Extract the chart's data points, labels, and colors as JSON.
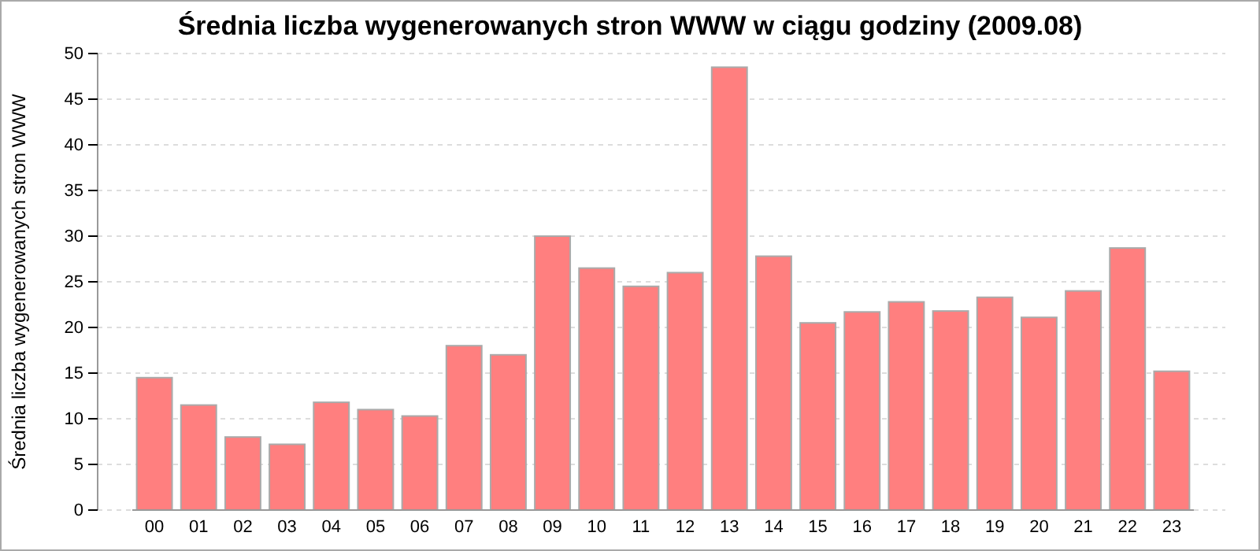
{
  "chart_data": {
    "type": "bar",
    "title": "Średnia liczba wygenerowanych stron WWW w ciągu godziny (2009.08)",
    "ylabel": "Średnia liczba wygenerowanych stron WWW",
    "categories": [
      "00",
      "01",
      "02",
      "03",
      "04",
      "05",
      "06",
      "07",
      "08",
      "09",
      "10",
      "11",
      "12",
      "13",
      "14",
      "15",
      "16",
      "17",
      "18",
      "19",
      "20",
      "21",
      "22",
      "23"
    ],
    "values": [
      14.5,
      11.5,
      8,
      7.2,
      11.8,
      11,
      10.3,
      18,
      17,
      30,
      26.5,
      24.5,
      26,
      48.5,
      27.8,
      20.5,
      21.7,
      22.8,
      21.8,
      23.3,
      21.1,
      24,
      28.7,
      15.2
    ],
    "color": "#ff7f7f",
    "ylim": [
      0,
      50
    ],
    "yticks": [
      0,
      5,
      10,
      15,
      20,
      25,
      30,
      35,
      40,
      45,
      50
    ],
    "grid": "y"
  }
}
